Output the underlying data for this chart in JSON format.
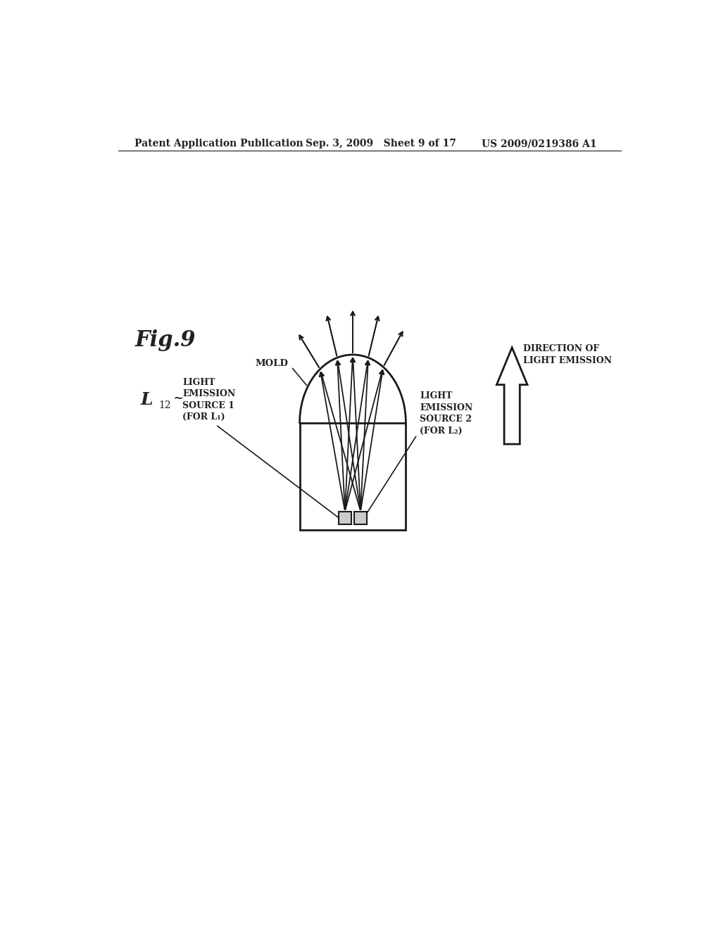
{
  "background_color": "#ffffff",
  "header_left": "Patent Application Publication",
  "header_mid": "Sep. 3, 2009   Sheet 9 of 17",
  "header_right": "US 2009/0219386 A1",
  "fig_label": "Fig.9",
  "text_light_emission_src1": "LIGHT\nEMISSION\nSOURCE 1\n(FOR L₁)",
  "text_light_emission_src2": "LIGHT\nEMISSION\nSOURCE 2\n(FOR L₂)",
  "text_mold": "MOLD",
  "text_direction": "DIRECTION OF\nLIGHT EMISSION",
  "line_color": "#1a1a1a"
}
